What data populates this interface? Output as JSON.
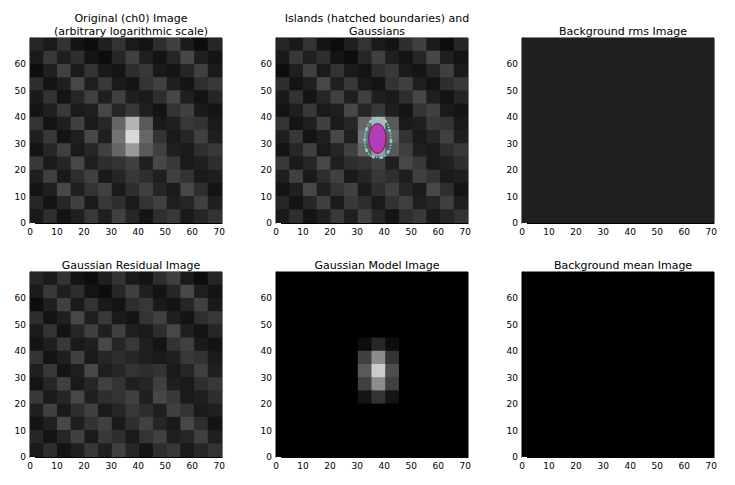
{
  "chart_data": [
    {
      "type": "image",
      "title": "Original (ch0) Image\n(arbitrary logarithmic scale)",
      "color": "gray",
      "xlim": [
        0,
        71
      ],
      "ylim": [
        0,
        70
      ],
      "xticks": [
        0,
        10,
        20,
        30,
        40,
        50,
        60,
        70
      ],
      "yticks": [
        0,
        10,
        20,
        30,
        40,
        50,
        60
      ],
      "clim": [
        0,
        100
      ],
      "cells": [
        [
          15,
          10,
          20,
          8,
          5,
          12,
          20,
          10,
          8,
          18,
          25,
          10,
          5,
          15
        ],
        [
          10,
          22,
          12,
          18,
          8,
          5,
          15,
          25,
          12,
          8,
          15,
          28,
          12,
          8
        ],
        [
          5,
          12,
          25,
          10,
          20,
          10,
          8,
          18,
          22,
          10,
          8,
          15,
          25,
          10
        ],
        [
          18,
          8,
          12,
          28,
          12,
          22,
          10,
          8,
          20,
          25,
          12,
          8,
          18,
          22
        ],
        [
          10,
          20,
          8,
          15,
          25,
          12,
          25,
          12,
          10,
          18,
          28,
          12,
          8,
          15
        ],
        [
          8,
          12,
          22,
          10,
          12,
          28,
          15,
          22,
          12,
          8,
          20,
          25,
          10,
          8
        ],
        [
          20,
          8,
          12,
          25,
          10,
          15,
          40,
          70,
          35,
          10,
          12,
          22,
          20,
          10
        ],
        [
          12,
          22,
          8,
          12,
          28,
          12,
          45,
          85,
          40,
          20,
          10,
          15,
          25,
          12
        ],
        [
          8,
          15,
          25,
          10,
          15,
          25,
          40,
          60,
          35,
          25,
          12,
          10,
          18,
          22
        ],
        [
          22,
          10,
          15,
          28,
          12,
          18,
          20,
          25,
          12,
          28,
          22,
          10,
          12,
          18
        ],
        [
          12,
          25,
          10,
          18,
          25,
          10,
          15,
          22,
          18,
          12,
          25,
          20,
          10,
          12
        ],
        [
          8,
          12,
          28,
          12,
          20,
          25,
          10,
          18,
          25,
          15,
          10,
          28,
          18,
          8
        ],
        [
          15,
          8,
          15,
          25,
          10,
          22,
          18,
          10,
          20,
          25,
          12,
          15,
          25,
          12
        ],
        [
          10,
          18,
          8,
          12,
          22,
          12,
          25,
          15,
          8,
          18,
          22,
          10,
          15,
          20
        ]
      ]
    },
    {
      "type": "image",
      "title": "Islands (hatched boundaries) and\nGaussians",
      "color": "gray",
      "xlim": [
        0,
        71
      ],
      "ylim": [
        0,
        70
      ],
      "xticks": [
        0,
        10,
        20,
        30,
        40,
        50,
        60,
        70
      ],
      "yticks": [
        0,
        10,
        20,
        30,
        40,
        50,
        60
      ],
      "clim": [
        0,
        100
      ],
      "cells": [
        [
          15,
          10,
          20,
          8,
          5,
          12,
          20,
          10,
          8,
          18,
          25,
          10,
          5,
          15
        ],
        [
          10,
          22,
          12,
          18,
          8,
          5,
          15,
          25,
          12,
          8,
          15,
          28,
          12,
          8
        ],
        [
          5,
          12,
          25,
          10,
          20,
          10,
          8,
          18,
          22,
          10,
          8,
          15,
          25,
          10
        ],
        [
          18,
          8,
          12,
          28,
          12,
          22,
          10,
          8,
          20,
          25,
          12,
          8,
          18,
          22
        ],
        [
          10,
          20,
          8,
          15,
          25,
          12,
          25,
          12,
          10,
          18,
          28,
          12,
          8,
          15
        ],
        [
          8,
          12,
          22,
          10,
          12,
          28,
          15,
          22,
          12,
          8,
          20,
          25,
          10,
          8
        ],
        [
          20,
          8,
          12,
          25,
          10,
          15,
          40,
          70,
          35,
          10,
          12,
          22,
          20,
          10
        ],
        [
          12,
          22,
          8,
          12,
          28,
          12,
          45,
          85,
          40,
          20,
          10,
          15,
          25,
          12
        ],
        [
          8,
          15,
          25,
          10,
          15,
          25,
          40,
          60,
          35,
          25,
          12,
          10,
          18,
          22
        ],
        [
          22,
          10,
          15,
          28,
          12,
          18,
          20,
          25,
          12,
          28,
          22,
          10,
          12,
          18
        ],
        [
          12,
          25,
          10,
          18,
          25,
          10,
          15,
          22,
          18,
          12,
          25,
          20,
          10,
          12
        ],
        [
          8,
          12,
          28,
          12,
          20,
          25,
          10,
          18,
          25,
          15,
          10,
          28,
          18,
          8
        ],
        [
          15,
          8,
          15,
          25,
          10,
          22,
          18,
          10,
          20,
          25,
          12,
          15,
          25,
          12
        ],
        [
          10,
          18,
          8,
          12,
          22,
          12,
          25,
          15,
          8,
          18,
          22,
          10,
          15,
          20
        ]
      ],
      "island": {
        "color": "#7fd8d8",
        "x": [
          37.5,
          40.5,
          42,
          42.5,
          41.5,
          39,
          36,
          33.5,
          32.8,
          33.5,
          35
        ],
        "y": [
          39.5,
          38.5,
          35,
          31,
          27,
          24.8,
          25,
          27.5,
          31.5,
          35.5,
          38.5
        ]
      },
      "gaussians": [
        {
          "x": 37.5,
          "y": 32,
          "x_radius": 3.2,
          "y_radius": 5.6,
          "color": "#b43cb4"
        }
      ]
    },
    {
      "type": "image",
      "title": "Background rms Image",
      "color": "gray",
      "xlim": [
        0,
        71
      ],
      "ylim": [
        0,
        70
      ],
      "xticks": [
        0,
        10,
        20,
        30,
        40,
        50,
        60,
        70
      ],
      "yticks": [
        0,
        10,
        20,
        30,
        40,
        50,
        60
      ],
      "clim": [
        0,
        100
      ],
      "cells": [
        [
          12
        ]
      ]
    },
    {
      "type": "image",
      "title": "Gaussian Residual Image",
      "color": "gray",
      "xlim": [
        0,
        71
      ],
      "ylim": [
        0,
        70
      ],
      "xticks": [
        0,
        10,
        20,
        30,
        40,
        50,
        60,
        70
      ],
      "yticks": [
        0,
        10,
        20,
        30,
        40,
        50,
        60
      ],
      "clim": [
        0,
        100
      ],
      "cells": [
        [
          15,
          10,
          20,
          8,
          5,
          12,
          20,
          10,
          8,
          18,
          25,
          10,
          5,
          15
        ],
        [
          10,
          22,
          12,
          18,
          8,
          5,
          15,
          25,
          12,
          8,
          15,
          28,
          12,
          8
        ],
        [
          5,
          12,
          25,
          10,
          20,
          10,
          8,
          18,
          22,
          10,
          8,
          15,
          25,
          10
        ],
        [
          18,
          8,
          12,
          28,
          12,
          22,
          10,
          8,
          20,
          25,
          12,
          8,
          18,
          22
        ],
        [
          10,
          20,
          8,
          15,
          25,
          12,
          25,
          12,
          10,
          18,
          28,
          12,
          8,
          15
        ],
        [
          8,
          12,
          22,
          10,
          12,
          28,
          15,
          22,
          12,
          8,
          20,
          25,
          10,
          8
        ],
        [
          20,
          8,
          12,
          25,
          10,
          15,
          18,
          15,
          12,
          10,
          12,
          22,
          20,
          10
        ],
        [
          12,
          22,
          8,
          12,
          28,
          12,
          15,
          20,
          18,
          20,
          10,
          15,
          25,
          12
        ],
        [
          8,
          15,
          25,
          10,
          15,
          25,
          20,
          12,
          15,
          25,
          12,
          10,
          18,
          22
        ],
        [
          22,
          10,
          15,
          28,
          12,
          18,
          20,
          25,
          12,
          28,
          22,
          10,
          12,
          18
        ],
        [
          12,
          25,
          10,
          18,
          25,
          10,
          15,
          22,
          18,
          12,
          25,
          20,
          10,
          12
        ],
        [
          8,
          12,
          28,
          12,
          20,
          25,
          10,
          18,
          25,
          15,
          10,
          28,
          18,
          8
        ],
        [
          15,
          8,
          15,
          25,
          10,
          22,
          18,
          10,
          20,
          25,
          12,
          15,
          25,
          12
        ],
        [
          10,
          18,
          8,
          12,
          22,
          12,
          25,
          15,
          8,
          18,
          22,
          10,
          15,
          20
        ]
      ]
    },
    {
      "type": "image",
      "title": "Gaussian Model Image",
      "color": "gray",
      "xlim": [
        0,
        71
      ],
      "ylim": [
        0,
        70
      ],
      "xticks": [
        0,
        10,
        20,
        30,
        40,
        50,
        60,
        70
      ],
      "yticks": [
        0,
        10,
        20,
        30,
        40,
        50,
        60
      ],
      "clim": [
        0,
        100
      ],
      "cells": [
        [
          0,
          0,
          0,
          0,
          0,
          0,
          0,
          0,
          0,
          0,
          0,
          0,
          0,
          0
        ],
        [
          0,
          0,
          0,
          0,
          0,
          0,
          0,
          0,
          0,
          0,
          0,
          0,
          0,
          0
        ],
        [
          0,
          0,
          0,
          0,
          0,
          0,
          0,
          0,
          0,
          0,
          0,
          0,
          0,
          0
        ],
        [
          0,
          0,
          0,
          0,
          0,
          0,
          0,
          0,
          0,
          0,
          0,
          0,
          0,
          0
        ],
        [
          0,
          0,
          0,
          0,
          0,
          0,
          0,
          0,
          0,
          0,
          0,
          0,
          0,
          0
        ],
        [
          0,
          0,
          0,
          0,
          0,
          0,
          5,
          15,
          5,
          0,
          0,
          0,
          0,
          0
        ],
        [
          0,
          0,
          0,
          0,
          0,
          0,
          25,
          55,
          20,
          0,
          0,
          0,
          0,
          0
        ],
        [
          0,
          0,
          0,
          0,
          0,
          0,
          35,
          80,
          30,
          0,
          0,
          0,
          0,
          0
        ],
        [
          0,
          0,
          0,
          0,
          0,
          0,
          25,
          55,
          25,
          0,
          0,
          0,
          0,
          0
        ],
        [
          0,
          0,
          0,
          0,
          0,
          0,
          8,
          20,
          8,
          0,
          0,
          0,
          0,
          0
        ],
        [
          0,
          0,
          0,
          0,
          0,
          0,
          0,
          0,
          0,
          0,
          0,
          0,
          0,
          0
        ],
        [
          0,
          0,
          0,
          0,
          0,
          0,
          0,
          0,
          0,
          0,
          0,
          0,
          0,
          0
        ],
        [
          0,
          0,
          0,
          0,
          0,
          0,
          0,
          0,
          0,
          0,
          0,
          0,
          0,
          0
        ],
        [
          0,
          0,
          0,
          0,
          0,
          0,
          0,
          0,
          0,
          0,
          0,
          0,
          0,
          0
        ]
      ]
    },
    {
      "type": "image",
      "title": "Background mean Image",
      "color": "gray",
      "xlim": [
        0,
        71
      ],
      "ylim": [
        0,
        70
      ],
      "xticks": [
        0,
        10,
        20,
        30,
        40,
        50,
        60,
        70
      ],
      "yticks": [
        0,
        10,
        20,
        30,
        40,
        50,
        60
      ],
      "clim": [
        0,
        100
      ],
      "cells": [
        [
          0
        ]
      ]
    }
  ]
}
